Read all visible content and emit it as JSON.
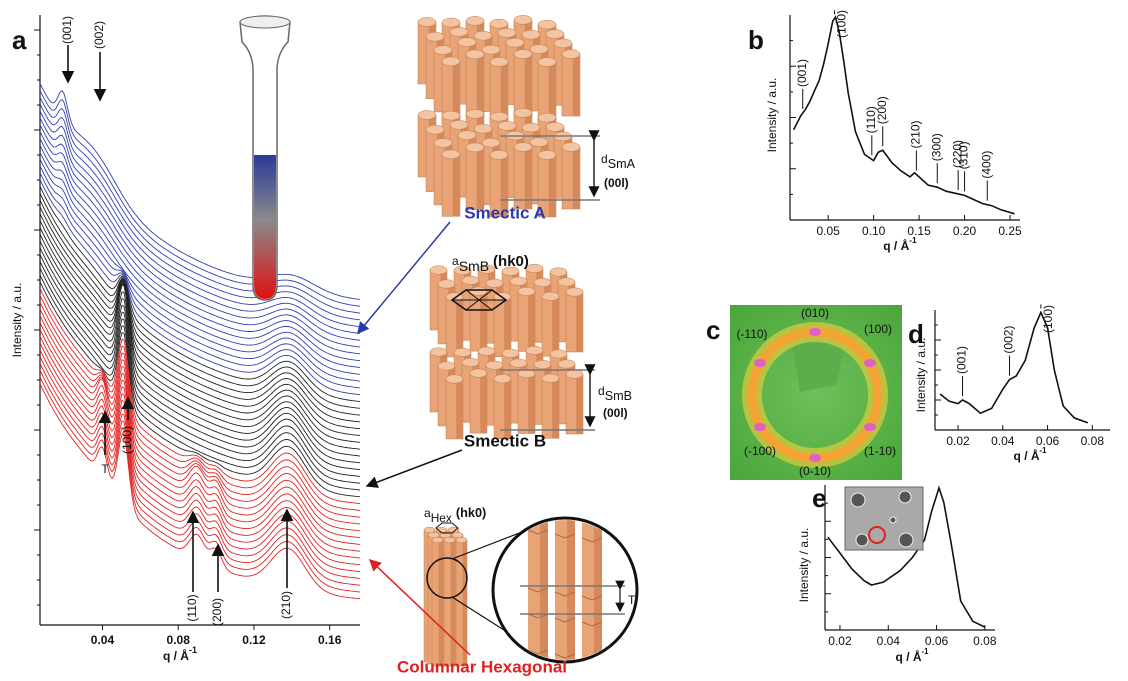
{
  "panels": {
    "a": {
      "label": "a",
      "type": "waterfall",
      "xlabel": "q / Å",
      "xlabel_sup": "-1",
      "ylabel": "Intensity / a.u.",
      "xlim": [
        0.007,
        0.176
      ],
      "xticks": [
        0.04,
        0.08,
        0.12,
        0.16
      ],
      "curve_groups": [
        {
          "color": "#3340b0",
          "count": 15
        },
        {
          "color": "#222222",
          "count": 15
        },
        {
          "color": "#e32222",
          "count": 15
        }
      ],
      "annotations": [
        "(001)",
        "(002)",
        "T",
        "(100)",
        "(110)",
        "(200)",
        "(210)"
      ]
    },
    "b": {
      "label": "b",
      "type": "line",
      "xlabel": "q / Å",
      "xlabel_sup": "-1",
      "ylabel": "Intensity / a.u.",
      "xlim": [
        0.008,
        0.261
      ],
      "ylim": [
        0,
        100
      ],
      "xticks": [
        0.05,
        {
          "value": 0.1,
          "label": "0.10"
        },
        0.15,
        {
          "value": 0.2,
          "label": "0.20"
        },
        0.25
      ],
      "x": [
        0.012,
        0.02,
        0.025,
        0.03,
        0.035,
        0.04,
        0.045,
        0.05,
        0.055,
        0.058,
        0.062,
        0.067,
        0.072,
        0.08,
        0.09,
        0.1,
        0.105,
        0.11,
        0.115,
        0.12,
        0.13,
        0.14,
        0.145,
        0.15,
        0.16,
        0.17,
        0.18,
        0.19,
        0.2,
        0.21,
        0.22,
        0.23,
        0.24,
        0.255
      ],
      "values": [
        44,
        51,
        54,
        58,
        63,
        68,
        76,
        86,
        97,
        99,
        92,
        78,
        62,
        43,
        32,
        29,
        33,
        34,
        31,
        28,
        24,
        21,
        23,
        21,
        17,
        16,
        14,
        13,
        12,
        10,
        8,
        7,
        5,
        3
      ],
      "color": "#111111",
      "peaks": [
        {
          "label": "(001)",
          "q": 0.022
        },
        {
          "label": "(100)",
          "q": 0.057
        },
        {
          "label": "(110)",
          "q": 0.098
        },
        {
          "label": "(200)",
          "q": 0.11
        },
        {
          "label": "(210)",
          "q": 0.147
        },
        {
          "label": "(300)",
          "q": 0.17
        },
        {
          "label": "(220)",
          "q": 0.193
        },
        {
          "label": "(310)",
          "q": 0.2
        },
        {
          "label": "(400)",
          "q": 0.225
        }
      ]
    },
    "c": {
      "label": "c",
      "spots": [
        "(010)",
        "(100)",
        "(-110)",
        "(-100)",
        "(1-10)",
        "(0-10)"
      ]
    },
    "d": {
      "label": "d",
      "type": "line",
      "xlabel": "q / Å",
      "xlabel_sup": "-1",
      "ylabel": "Intensity / a.u.",
      "xlim": [
        0.0097,
        0.0879
      ],
      "ylim": [
        0,
        100
      ],
      "xticks": [
        0.02,
        0.04,
        0.06,
        0.08
      ],
      "x": [
        0.012,
        0.016,
        0.02,
        0.022,
        0.025,
        0.03,
        0.035,
        0.04,
        0.043,
        0.046,
        0.05,
        0.054,
        0.057,
        0.06,
        0.063,
        0.067,
        0.072,
        0.078
      ],
      "values": [
        30,
        24,
        22,
        25,
        22,
        14,
        18,
        34,
        42,
        45,
        58,
        85,
        98,
        85,
        50,
        20,
        10,
        6
      ],
      "color": "#111111",
      "peaks": [
        {
          "label": "(001)",
          "q": 0.022
        },
        {
          "label": "(002)",
          "q": 0.043
        },
        {
          "label": "(100)",
          "q": 0.057
        }
      ]
    },
    "e": {
      "label": "e",
      "type": "line",
      "xlabel": "q / Å",
      "xlabel_sup": "-1",
      "ylabel": "Intensity / a.u.",
      "xlim": [
        0.0138,
        0.0842
      ],
      "ylim": [
        0,
        100
      ],
      "xticks": [
        0.02,
        0.04,
        0.06,
        0.08
      ],
      "x": [
        0.015,
        0.02,
        0.025,
        0.03,
        0.033,
        0.038,
        0.045,
        0.05,
        0.055,
        0.058,
        0.061,
        0.063,
        0.066,
        0.07,
        0.075,
        0.08
      ],
      "values": [
        64,
        53,
        42,
        34,
        31,
        33,
        41,
        50,
        62,
        82,
        98,
        88,
        60,
        20,
        6,
        2
      ],
      "color": "#111111",
      "peaks": []
    }
  },
  "illustration": {
    "smectic_a": {
      "title": "Smectic A",
      "d": "d",
      "d_sub": "SmA",
      "index": "(00l)"
    },
    "smectic_b": {
      "title": "Smectic B",
      "a": "a",
      "a_sub": "SmB",
      "a_index": "(hk0)",
      "d": "d",
      "d_sub": "SmB",
      "index": "(00l)"
    },
    "columnar": {
      "title": "Columnar Hexagonal",
      "a": "a",
      "a_sub": "Hex",
      "a_index": "(hk0)",
      "spacing": "T"
    }
  }
}
